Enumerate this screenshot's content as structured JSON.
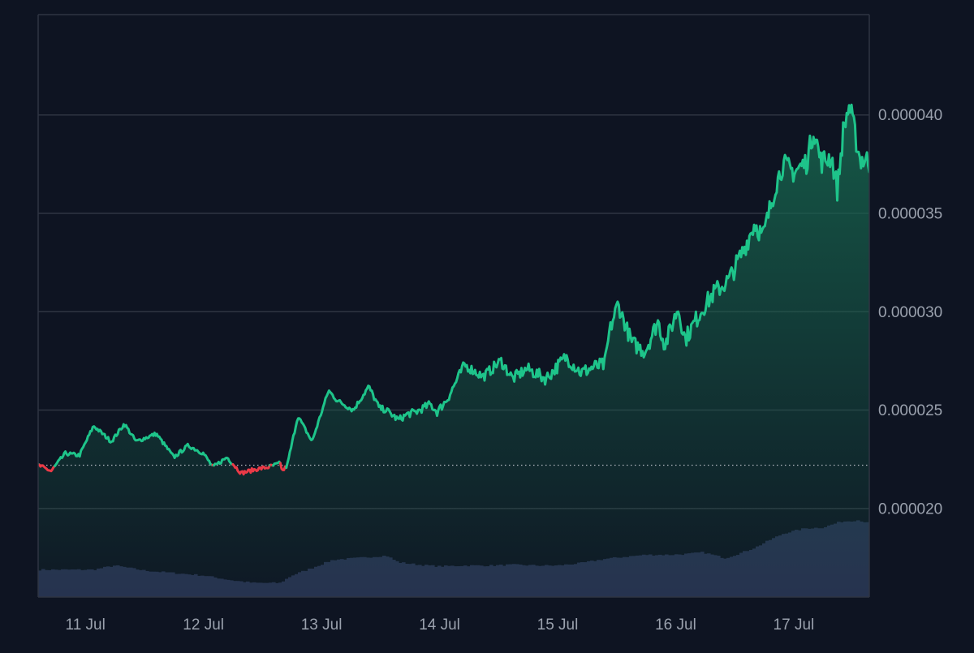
{
  "chart_data": {
    "type": "area",
    "title": "",
    "xlabel": "",
    "ylabel": "",
    "x_axis": {
      "tick_labels": [
        "11 Jul",
        "12 Jul",
        "13 Jul",
        "14 Jul",
        "15 Jul",
        "16 Jul",
        "17 Jul"
      ],
      "range_days": [
        10.6,
        17.64
      ]
    },
    "y_axis": {
      "position": "right",
      "tick_values": [
        2e-05,
        2.5e-05,
        3e-05,
        3.5e-05,
        4e-05
      ],
      "tick_labels": [
        "0.000020",
        "0.000025",
        "0.000030",
        "0.000035",
        "0.000040"
      ],
      "ylim": [
        1.55e-05,
        4.51e-05
      ]
    },
    "grid": "horizontal",
    "legend": "none",
    "baseline": 2.22e-05,
    "colors": {
      "background": "#0e1422",
      "grid": "#2f3542",
      "axis_text": "#9aa1ad",
      "up": "#1ec48a",
      "down": "#ea3a47",
      "baseline": "#c8ccd4",
      "volume": "#27304f",
      "area_top": "#17654e"
    },
    "series": [
      {
        "type": "price",
        "x_day": [
          10.6,
          10.71,
          10.83,
          10.95,
          11.07,
          11.22,
          11.33,
          11.43,
          11.6,
          11.75,
          11.87,
          12.0,
          12.08,
          12.2,
          12.32,
          12.45,
          12.55,
          12.65,
          12.67,
          12.71,
          12.8,
          12.92,
          13.06,
          13.13,
          13.27,
          13.4,
          13.49,
          13.55,
          13.65,
          13.73,
          13.8,
          13.92,
          13.98,
          14.07,
          14.21,
          14.37,
          14.52,
          14.62,
          14.74,
          14.9,
          14.98,
          15.07,
          15.2,
          15.31,
          15.4,
          15.44,
          15.51,
          15.63,
          15.74,
          15.85,
          15.91,
          16.02,
          16.08,
          16.23,
          16.33,
          16.45,
          16.58,
          16.67,
          16.74,
          16.85,
          16.91,
          17.0,
          17.11,
          17.17,
          17.23,
          17.32,
          17.37,
          17.42,
          17.47,
          17.56,
          17.64
        ],
        "values": [
          2.22e-05,
          2.19e-05,
          2.28e-05,
          2.27e-05,
          2.42e-05,
          2.34e-05,
          2.43e-05,
          2.34e-05,
          2.38e-05,
          2.26e-05,
          2.32e-05,
          2.28e-05,
          2.21e-05,
          2.26e-05,
          2.18e-05,
          2.2e-05,
          2.21e-05,
          2.23e-05,
          2.19e-05,
          2.22e-05,
          2.47e-05,
          2.34e-05,
          2.6e-05,
          2.55e-05,
          2.5e-05,
          2.62e-05,
          2.51e-05,
          2.5e-05,
          2.45e-05,
          2.48e-05,
          2.49e-05,
          2.53e-05,
          2.49e-05,
          2.56e-05,
          2.73e-05,
          2.67e-05,
          2.75e-05,
          2.66e-05,
          2.71e-05,
          2.66e-05,
          2.71e-05,
          2.77e-05,
          2.69e-05,
          2.72e-05,
          2.73e-05,
          2.9e-05,
          3.04e-05,
          2.84e-05,
          2.8e-05,
          2.95e-05,
          2.83e-05,
          3.02e-05,
          2.86e-05,
          3.02e-05,
          3.1e-05,
          3.16e-05,
          3.32e-05,
          3.45e-05,
          3.38e-05,
          3.65e-05,
          3.75e-05,
          3.71e-05,
          3.76e-05,
          3.93e-05,
          3.76e-05,
          3.79e-05,
          3.62e-05,
          3.92e-05,
          4.05e-05,
          3.78e-05,
          3.76e-05
        ]
      },
      {
        "type": "volume",
        "note_scale": "relative_0_to_1",
        "x_day": [
          10.6,
          11.07,
          11.25,
          11.5,
          11.75,
          12.0,
          12.25,
          12.43,
          12.65,
          12.75,
          12.92,
          13.1,
          13.3,
          13.55,
          13.65,
          13.82,
          14.0,
          14.2,
          14.45,
          14.62,
          14.85,
          15.0,
          15.2,
          15.4,
          15.6,
          15.75,
          15.95,
          16.1,
          16.23,
          16.42,
          16.55,
          16.68,
          16.8,
          16.92,
          17.1,
          17.25,
          17.4,
          17.55,
          17.64
        ],
        "values": [
          0.33,
          0.33,
          0.38,
          0.32,
          0.29,
          0.26,
          0.2,
          0.17,
          0.17,
          0.26,
          0.35,
          0.45,
          0.47,
          0.5,
          0.42,
          0.39,
          0.37,
          0.38,
          0.38,
          0.39,
          0.38,
          0.38,
          0.41,
          0.46,
          0.49,
          0.51,
          0.51,
          0.52,
          0.54,
          0.47,
          0.53,
          0.6,
          0.69,
          0.77,
          0.83,
          0.84,
          0.91,
          0.93,
          0.89
        ]
      }
    ]
  }
}
